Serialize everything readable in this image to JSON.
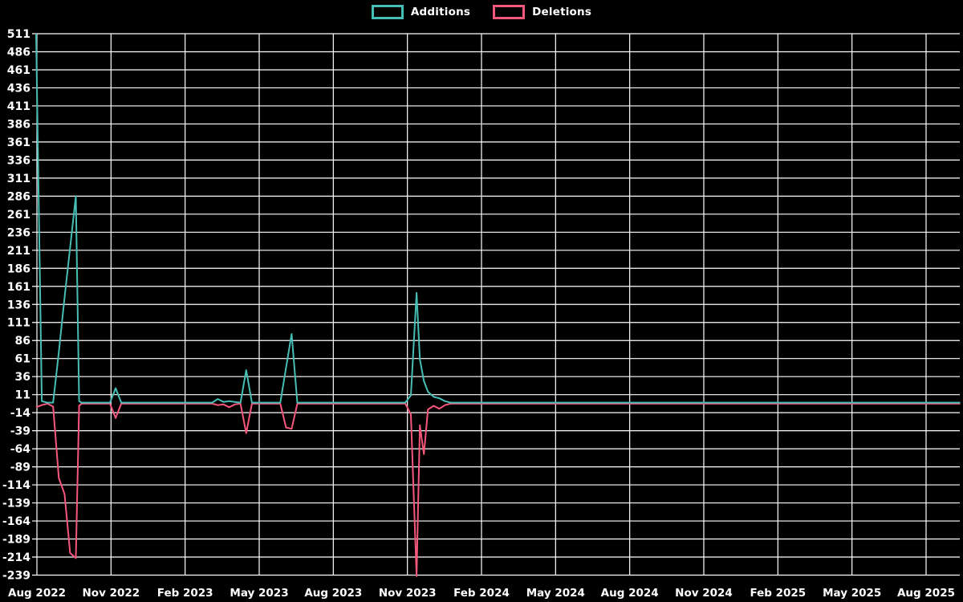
{
  "chart_data": {
    "type": "line",
    "title": "",
    "background_color": "#000000",
    "grid_color": "#ffffff",
    "text_color": "#ffffff",
    "grid": "on",
    "legend_position": "top-center",
    "x_axis": {
      "start_label": "Aug 2022",
      "end_label": "Aug 2025",
      "tick_labels": [
        "Aug 2022",
        "Nov 2022",
        "Feb 2023",
        "May 2023",
        "Aug 2023",
        "Nov 2023",
        "Feb 2024",
        "May 2024",
        "Aug 2024",
        "Nov 2024",
        "Feb 2025",
        "May 2025",
        "Aug 2025"
      ]
    },
    "y_axis": {
      "min": -239,
      "max": 511,
      "tick_step": 25,
      "ticks": [
        511,
        486,
        461,
        436,
        411,
        386,
        361,
        336,
        311,
        286,
        261,
        236,
        211,
        186,
        161,
        136,
        111,
        86,
        61,
        36,
        11,
        -14,
        -39,
        -64,
        -89,
        -114,
        -139,
        -164,
        -189,
        -214,
        -239
      ]
    },
    "dates": [
      "2022-07-31",
      "2022-08-07",
      "2022-08-14",
      "2022-08-21",
      "2022-08-28",
      "2022-09-04",
      "2022-09-11",
      "2022-09-18",
      "2022-09-22",
      "2022-09-25",
      "2022-10-30",
      "2022-11-06",
      "2022-11-13",
      "2023-03-05",
      "2023-03-12",
      "2023-03-19",
      "2023-03-26",
      "2023-04-02",
      "2023-04-09",
      "2023-04-16",
      "2023-04-23",
      "2023-05-28",
      "2023-06-04",
      "2023-06-11",
      "2023-06-18",
      "2023-10-29",
      "2023-11-05",
      "2023-11-12",
      "2023-11-16",
      "2023-11-21",
      "2023-11-26",
      "2023-12-03",
      "2023-12-10",
      "2023-12-17",
      "2023-12-24",
      "2025-09-12"
    ],
    "series": [
      {
        "name": "Additions",
        "color": "#47beb5",
        "values": [
          511,
          2,
          0,
          0,
          70,
          145,
          215,
          286,
          2,
          0,
          0,
          20,
          0,
          0,
          5,
          1,
          2,
          1,
          0,
          45,
          0,
          0,
          48,
          95,
          0,
          0,
          10,
          152,
          60,
          30,
          15,
          8,
          6,
          2,
          0,
          0
        ]
      },
      {
        "name": "Deletions",
        "color": "#f6587c",
        "values": [
          -5,
          -2,
          0,
          -4,
          -103,
          -125,
          -207,
          -214,
          -3,
          0,
          0,
          -20,
          0,
          0,
          -2,
          -1,
          -5,
          -1,
          0,
          -41,
          0,
          0,
          -33,
          -35,
          0,
          0,
          -15,
          -239,
          -30,
          -70,
          -8,
          -3,
          -7,
          -2,
          0,
          0
        ]
      }
    ]
  }
}
